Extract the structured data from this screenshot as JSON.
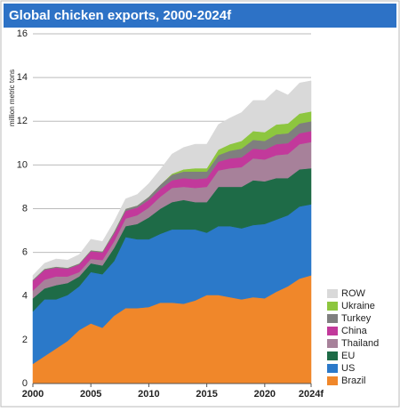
{
  "chart_data": {
    "type": "stacked_area",
    "title": "Global chicken exports, 2000-2024f",
    "y_label": "million metric tons",
    "x": [
      2000,
      2001,
      2002,
      2003,
      2004,
      2005,
      2006,
      2007,
      2008,
      2009,
      2010,
      2011,
      2012,
      2013,
      2014,
      2015,
      2016,
      2017,
      2018,
      2019,
      2020,
      2021,
      2022,
      2023,
      2024
    ],
    "xlim": [
      2000,
      2024
    ],
    "xticks": [
      2000,
      2005,
      2010,
      2015,
      2020,
      {
        "value": 2024,
        "label": "2024f"
      }
    ],
    "ylim": [
      0,
      16
    ],
    "yticks": [
      0,
      2,
      4,
      6,
      8,
      10,
      12,
      14,
      16
    ],
    "grid": true,
    "legend": "lower right",
    "series": [
      {
        "name": "Brazil",
        "color": "#f0872a",
        "values": [
          0.9,
          1.25,
          1.6,
          1.95,
          2.45,
          2.75,
          2.55,
          3.1,
          3.45,
          3.45,
          3.5,
          3.7,
          3.7,
          3.65,
          3.8,
          4.05,
          4.05,
          3.95,
          3.85,
          3.95,
          3.9,
          4.2,
          4.45,
          4.8,
          4.95
        ]
      },
      {
        "name": "US",
        "color": "#2b79c9",
        "values": [
          2.4,
          2.6,
          2.25,
          2.1,
          2.0,
          2.35,
          2.45,
          2.5,
          3.25,
          3.15,
          3.1,
          3.15,
          3.35,
          3.4,
          3.25,
          2.85,
          3.15,
          3.25,
          3.25,
          3.3,
          3.4,
          3.3,
          3.25,
          3.3,
          3.25
        ]
      },
      {
        "name": "EU",
        "color": "#1e6b47",
        "values": [
          0.6,
          0.5,
          0.65,
          0.55,
          0.45,
          0.4,
          0.4,
          0.6,
          0.5,
          0.7,
          1.0,
          1.15,
          1.25,
          1.35,
          1.25,
          1.4,
          1.8,
          1.8,
          1.9,
          2.05,
          1.95,
          1.9,
          1.7,
          1.7,
          1.65
        ]
      },
      {
        "name": "Thailand",
        "color": "#a7819a",
        "values": [
          0.35,
          0.4,
          0.4,
          0.3,
          0.2,
          0.2,
          0.25,
          0.3,
          0.35,
          0.4,
          0.45,
          0.55,
          0.65,
          0.6,
          0.65,
          0.7,
          0.75,
          0.85,
          0.9,
          1.0,
          1.0,
          1.05,
          1.1,
          1.15,
          1.2
        ]
      },
      {
        "name": "China",
        "color": "#c2399b",
        "values": [
          0.45,
          0.45,
          0.4,
          0.35,
          0.35,
          0.35,
          0.35,
          0.35,
          0.35,
          0.35,
          0.35,
          0.35,
          0.35,
          0.4,
          0.4,
          0.4,
          0.4,
          0.45,
          0.45,
          0.45,
          0.45,
          0.5,
          0.5,
          0.5,
          0.5
        ]
      },
      {
        "name": "Turkey",
        "color": "#7f7f7f",
        "values": [
          0.05,
          0.05,
          0.05,
          0.05,
          0.05,
          0.05,
          0.05,
          0.1,
          0.1,
          0.1,
          0.15,
          0.2,
          0.25,
          0.3,
          0.35,
          0.3,
          0.3,
          0.35,
          0.4,
          0.4,
          0.4,
          0.45,
          0.45,
          0.45,
          0.45
        ]
      },
      {
        "name": "Ukraine",
        "color": "#8dc63f",
        "values": [
          0,
          0,
          0,
          0,
          0,
          0,
          0,
          0,
          0,
          0,
          0,
          0,
          0.05,
          0.1,
          0.15,
          0.15,
          0.25,
          0.3,
          0.35,
          0.4,
          0.4,
          0.45,
          0.45,
          0.45,
          0.45
        ]
      },
      {
        "name": "ROW",
        "color": "#d9d9d9",
        "values": [
          0.2,
          0.25,
          0.35,
          0.35,
          0.4,
          0.5,
          0.45,
          0.45,
          0.45,
          0.5,
          0.6,
          0.7,
          0.9,
          1.0,
          1.1,
          1.1,
          1.15,
          1.2,
          1.3,
          1.4,
          1.45,
          1.6,
          1.3,
          1.4,
          1.4
        ]
      }
    ]
  }
}
